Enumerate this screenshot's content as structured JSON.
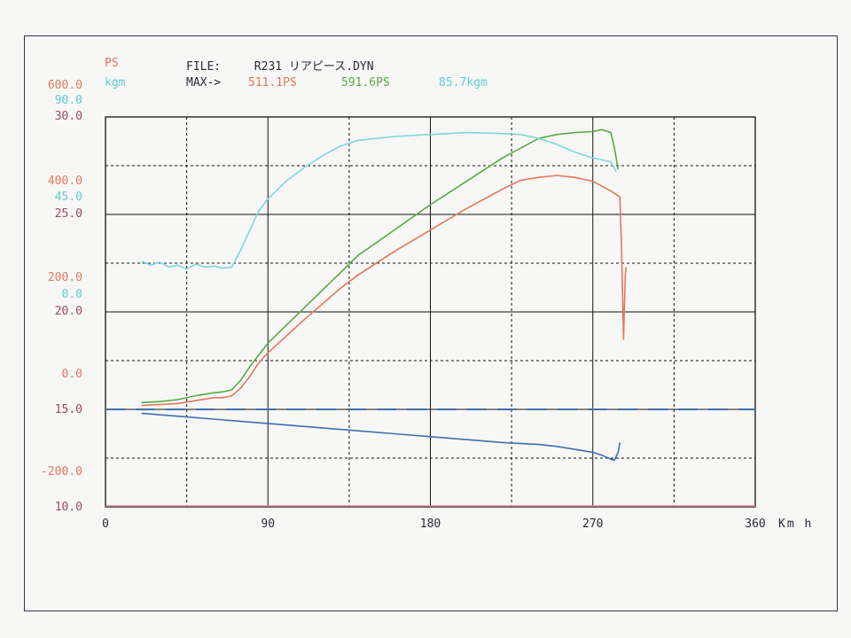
{
  "header": {
    "unit_ps": "PS",
    "unit_kgm": "kgm",
    "file_label": "FILE:",
    "file_name": "R231 リアピース.DYN",
    "max_label": "MAX->",
    "max_ps_1": "511.1PS",
    "max_ps_2": "591.6PS",
    "max_kgm": "85.7kgm"
  },
  "colors": {
    "ps": "#e0785e",
    "kgm": "#5fcbd8",
    "axis3": "#9a4a66",
    "series_red": "#e0785e",
    "series_green": "#5aa845",
    "series_cyan": "#7fd6dd",
    "series_blue": "#3f6fb0",
    "frame": "#2c3550"
  },
  "chart_data": {
    "type": "line",
    "xlabel": "Km h",
    "xlim": [
      0,
      360
    ],
    "x_ticks": [
      "0",
      "90",
      "180",
      "270",
      "360"
    ],
    "x_tick_values": [
      0,
      90,
      180,
      270,
      360
    ],
    "y_axes": [
      {
        "unit": "PS",
        "labels": [
          "600.0",
          "400.0",
          "200.0",
          "0.0",
          "-200.0"
        ]
      },
      {
        "unit": "kgm",
        "labels": [
          "90.0",
          "45.0",
          "0.0"
        ]
      },
      {
        "unit": "",
        "labels": [
          "30.0",
          "25.0",
          "20.0",
          "15.0",
          "10.0"
        ]
      }
    ],
    "ylim": [
      10,
      30
    ],
    "grid": true,
    "series": [
      {
        "color": "#e0785e",
        "x": [
          20,
          30,
          40,
          50,
          60,
          65,
          70,
          75,
          80,
          85,
          90,
          110,
          130,
          140,
          160,
          180,
          200,
          220,
          230,
          240,
          250,
          260,
          270,
          280,
          285,
          286,
          287,
          287.5,
          288,
          288.5
        ],
        "y": [
          15.2,
          15.25,
          15.3,
          15.45,
          15.6,
          15.6,
          15.7,
          16.1,
          16.7,
          17.4,
          17.9,
          19.6,
          21.2,
          21.9,
          23.1,
          24.2,
          25.3,
          26.3,
          26.75,
          26.9,
          27.0,
          26.9,
          26.7,
          26.2,
          25.9,
          23.0,
          18.6,
          20.3,
          21.9,
          22.3
        ]
      },
      {
        "color": "#5aa845",
        "x": [
          20,
          30,
          40,
          50,
          60,
          65,
          70,
          75,
          80,
          85,
          90,
          110,
          130,
          140,
          160,
          180,
          200,
          220,
          240,
          250,
          260,
          270,
          275,
          280,
          282,
          284
        ],
        "y": [
          15.35,
          15.4,
          15.5,
          15.7,
          15.85,
          15.9,
          16.0,
          16.5,
          17.2,
          17.8,
          18.4,
          20.2,
          22.0,
          22.9,
          24.2,
          25.5,
          26.7,
          27.9,
          28.9,
          29.1,
          29.2,
          29.25,
          29.35,
          29.2,
          28.4,
          27.3
        ]
      },
      {
        "color": "#7fd6dd",
        "x": [
          20,
          25,
          30,
          35,
          40,
          45,
          50,
          55,
          60,
          65,
          70,
          75,
          80,
          85,
          90,
          100,
          110,
          120,
          130,
          140,
          160,
          180,
          200,
          220,
          230,
          240,
          250,
          260,
          270,
          275,
          280,
          283
        ],
        "y": [
          22.6,
          22.4,
          22.55,
          22.3,
          22.4,
          22.2,
          22.45,
          22.3,
          22.35,
          22.25,
          22.3,
          23.2,
          24.2,
          25.2,
          25.8,
          26.7,
          27.4,
          28.0,
          28.5,
          28.8,
          29.0,
          29.1,
          29.2,
          29.15,
          29.1,
          28.9,
          28.6,
          28.2,
          27.9,
          27.8,
          27.7,
          27.2
        ]
      },
      {
        "color": "#3f6fb0",
        "x": [
          20,
          40,
          60,
          80,
          100,
          120,
          140,
          160,
          180,
          200,
          220,
          240,
          250,
          260,
          270,
          275,
          280,
          282,
          284,
          285
        ],
        "y": [
          14.8,
          14.65,
          14.5,
          14.35,
          14.2,
          14.05,
          13.9,
          13.75,
          13.6,
          13.45,
          13.3,
          13.2,
          13.1,
          12.95,
          12.8,
          12.65,
          12.45,
          12.4,
          12.8,
          13.3
        ]
      },
      {
        "color": "#3f6fb0",
        "dashed": true,
        "x": [
          0,
          360
        ],
        "y": [
          15.0,
          15.0
        ]
      }
    ]
  }
}
